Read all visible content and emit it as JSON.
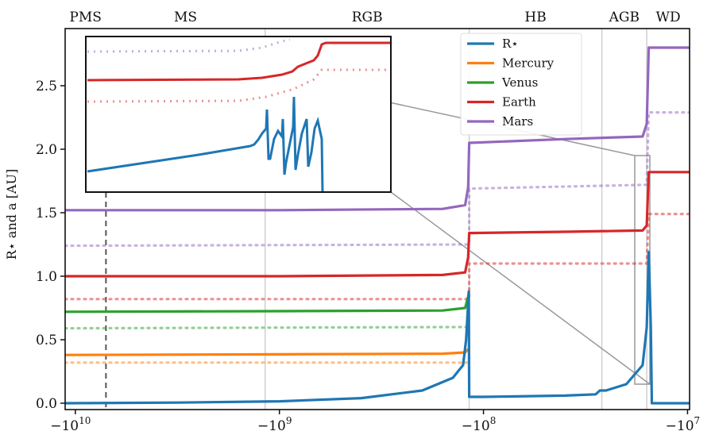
{
  "chart_data": {
    "type": "line",
    "title": "",
    "xlabel": "",
    "ylabel": "R⋆ and a [AU]",
    "ylim": [
      -0.05,
      2.95
    ],
    "xscale": "symlog (negative, log)",
    "xlim_exponent": [
      10.05,
      6.99
    ],
    "x_ticks": [
      {
        "label": "−10",
        "sup": "10",
        "exp": 10
      },
      {
        "label": "−10",
        "sup": "9",
        "exp": 9
      },
      {
        "label": "−10",
        "sup": "8",
        "exp": 8
      },
      {
        "label": "−10",
        "sup": "7",
        "exp": 7
      }
    ],
    "y_ticks": [
      {
        "label": "0.0",
        "value": 0.0
      },
      {
        "label": "0.5",
        "value": 0.5
      },
      {
        "label": "1.0",
        "value": 1.0
      },
      {
        "label": "1.5",
        "value": 1.5
      },
      {
        "label": "2.0",
        "value": 2.0
      },
      {
        "label": "2.5",
        "value": 2.5
      }
    ],
    "phases": [
      {
        "label": "PMS",
        "start_exp": 10.05,
        "end_exp": 9.85
      },
      {
        "label": "MS",
        "start_exp": 9.85,
        "end_exp": 9.07
      },
      {
        "label": "RGB",
        "start_exp": 9.07,
        "end_exp": 8.07
      },
      {
        "label": "HB",
        "start_exp": 8.07,
        "end_exp": 7.42
      },
      {
        "label": "AGB",
        "start_exp": 7.42,
        "end_exp": 7.2
      },
      {
        "label": "WD",
        "start_exp": 7.2,
        "end_exp": 6.99
      }
    ],
    "phase_boundaries_exp": [
      9.07,
      8.07,
      7.42,
      7.2
    ],
    "dashed_marker_exp": 9.85,
    "legend_position": "top-right",
    "series": [
      {
        "name": "R⋆",
        "color": "#1f77b4",
        "points": [
          [
            10.05,
            0.0
          ],
          [
            9.5,
            0.005
          ],
          [
            9.0,
            0.015
          ],
          [
            8.6,
            0.04
          ],
          [
            8.3,
            0.1
          ],
          [
            8.15,
            0.2
          ],
          [
            8.1,
            0.3
          ],
          [
            8.085,
            0.5
          ],
          [
            8.078,
            0.7
          ],
          [
            8.072,
            0.88
          ],
          [
            8.07,
            0.05
          ],
          [
            8.0,
            0.05
          ],
          [
            7.6,
            0.06
          ],
          [
            7.45,
            0.07
          ],
          [
            7.43,
            0.1
          ],
          [
            7.4,
            0.1
          ],
          [
            7.3,
            0.15
          ],
          [
            7.22,
            0.3
          ],
          [
            7.2,
            0.6
          ],
          [
            7.19,
            1.19
          ],
          [
            7.18,
            0.6
          ],
          [
            7.175,
            0.0
          ],
          [
            6.99,
            0.0
          ]
        ]
      },
      {
        "name": "Mercury",
        "color": "#ff7f0e",
        "points": [
          [
            10.05,
            0.38
          ],
          [
            9.0,
            0.385
          ],
          [
            8.2,
            0.39
          ],
          [
            8.09,
            0.4
          ],
          [
            8.072,
            0.43
          ]
        ],
        "initial": [
          [
            10.05,
            0.32
          ],
          [
            8.07,
            0.32
          ]
        ]
      },
      {
        "name": "Venus",
        "color": "#2ca02c",
        "points": [
          [
            10.05,
            0.72
          ],
          [
            9.0,
            0.725
          ],
          [
            8.2,
            0.73
          ],
          [
            8.09,
            0.75
          ],
          [
            8.075,
            0.84
          ],
          [
            8.071,
            0.88
          ]
        ],
        "initial": [
          [
            10.05,
            0.59
          ],
          [
            8.07,
            0.6
          ]
        ]
      },
      {
        "name": "Earth",
        "color": "#d62728",
        "points": [
          [
            10.05,
            1.0
          ],
          [
            9.0,
            1.0
          ],
          [
            8.2,
            1.01
          ],
          [
            8.09,
            1.03
          ],
          [
            8.075,
            1.15
          ],
          [
            8.07,
            1.34
          ],
          [
            7.6,
            1.35
          ],
          [
            7.22,
            1.36
          ],
          [
            7.2,
            1.4
          ],
          [
            7.19,
            1.82
          ],
          [
            6.99,
            1.82
          ]
        ],
        "initial": [
          [
            10.05,
            0.82
          ],
          [
            8.07,
            0.82
          ],
          [
            8.07,
            1.1
          ],
          [
            7.2,
            1.1
          ],
          [
            7.19,
            1.49
          ],
          [
            6.99,
            1.49
          ]
        ]
      },
      {
        "name": "Mars",
        "color": "#9467bd",
        "points": [
          [
            10.05,
            1.52
          ],
          [
            9.0,
            1.52
          ],
          [
            8.2,
            1.53
          ],
          [
            8.09,
            1.56
          ],
          [
            8.075,
            1.7
          ],
          [
            8.07,
            2.05
          ],
          [
            7.6,
            2.08
          ],
          [
            7.22,
            2.1
          ],
          [
            7.2,
            2.2
          ],
          [
            7.19,
            2.8
          ],
          [
            6.99,
            2.8
          ]
        ],
        "initial": [
          [
            10.05,
            1.24
          ],
          [
            8.07,
            1.25
          ],
          [
            8.07,
            1.69
          ],
          [
            7.2,
            1.72
          ],
          [
            7.19,
            2.29
          ],
          [
            6.99,
            2.29
          ]
        ]
      }
    ]
  }
}
